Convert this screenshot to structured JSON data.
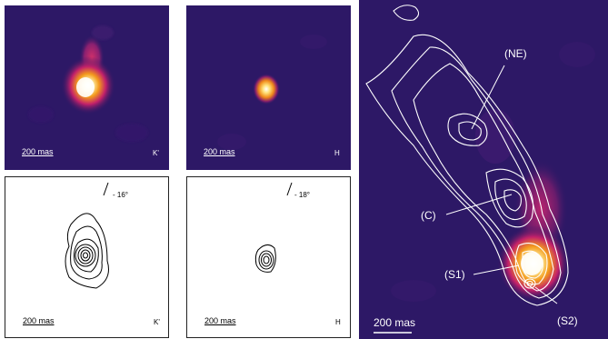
{
  "panels": {
    "top_left": {
      "scale": "200 mas",
      "band": "K'"
    },
    "top_mid": {
      "scale": "200 mas",
      "band": "H"
    },
    "bottom_left": {
      "scale": "200 mas",
      "band": "K'",
      "angle": "- 16°"
    },
    "bottom_mid": {
      "scale": "200 mas",
      "band": "H",
      "angle": "- 18°"
    },
    "right": {
      "scale": "200 mas",
      "labels": {
        "ne": "(NE)",
        "c": "(C)",
        "s1": "(S1)",
        "s2": "(S2)"
      }
    }
  },
  "colors": {
    "background_dark": "#2d1866",
    "hot_core": "#fff6c2",
    "hot_mid": "#f3a21a",
    "hot_outer": "#c2206a",
    "contour_white": "#ffffff",
    "contour_black": "#000000"
  }
}
